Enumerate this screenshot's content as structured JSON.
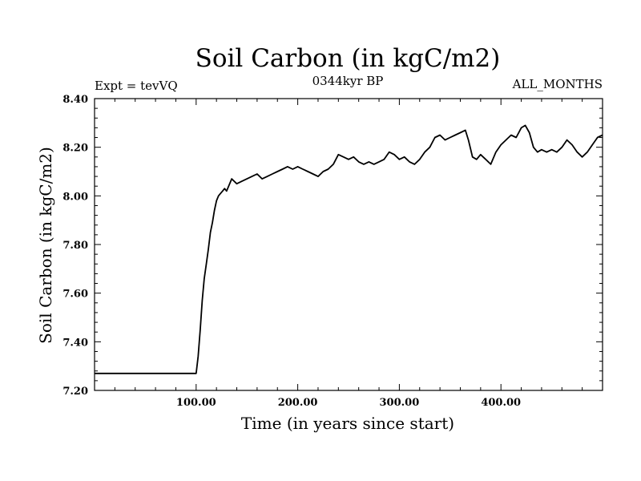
{
  "chart_data": {
    "type": "line",
    "title": "Soil Carbon (in kgC/m2)",
    "annotations": {
      "left": "Expt = tevVQ",
      "center": "0344kyr BP",
      "right": "ALL_MONTHS"
    },
    "xlabel": "Time (in years since start)",
    "ylabel": "Soil Carbon (in kgC/m2)",
    "xlim": [
      0,
      500
    ],
    "ylim": [
      7.2,
      8.4
    ],
    "x_ticks": [
      100,
      200,
      300,
      400
    ],
    "x_tick_labels": [
      "100.00",
      "200.00",
      "300.00",
      "400.00"
    ],
    "y_ticks": [
      7.2,
      7.4,
      7.6,
      7.8,
      8.0,
      8.2,
      8.4
    ],
    "y_tick_labels": [
      "7.20",
      "7.40",
      "7.60",
      "7.80",
      "8.00",
      "8.20",
      "8.40"
    ],
    "grid": false,
    "series": [
      {
        "x": [
          0,
          100,
          102,
          104,
          106,
          108,
          110,
          112,
          114,
          116,
          118,
          120,
          122,
          124,
          126,
          128,
          130,
          135,
          140,
          145,
          150,
          155,
          160,
          165,
          170,
          175,
          180,
          185,
          190,
          195,
          200,
          205,
          210,
          215,
          220,
          225,
          230,
          235,
          240,
          245,
          250,
          255,
          260,
          265,
          270,
          275,
          280,
          285,
          290,
          295,
          300,
          305,
          310,
          315,
          320,
          325,
          330,
          335,
          340,
          345,
          350,
          355,
          360,
          365,
          368,
          372,
          376,
          380,
          385,
          390,
          395,
          400,
          405,
          410,
          415,
          420,
          424,
          428,
          432,
          436,
          440,
          445,
          450,
          455,
          460,
          465,
          470,
          475,
          480,
          485,
          490,
          495,
          500
        ],
        "y": [
          7.27,
          7.27,
          7.34,
          7.45,
          7.57,
          7.66,
          7.72,
          7.78,
          7.85,
          7.89,
          7.94,
          7.98,
          8.0,
          8.01,
          8.02,
          8.03,
          8.02,
          8.07,
          8.05,
          8.06,
          8.07,
          8.08,
          8.09,
          8.07,
          8.08,
          8.09,
          8.1,
          8.11,
          8.12,
          8.11,
          8.12,
          8.11,
          8.1,
          8.09,
          8.08,
          8.1,
          8.11,
          8.13,
          8.17,
          8.16,
          8.15,
          8.16,
          8.14,
          8.13,
          8.14,
          8.13,
          8.14,
          8.15,
          8.18,
          8.17,
          8.15,
          8.16,
          8.14,
          8.13,
          8.15,
          8.18,
          8.2,
          8.24,
          8.25,
          8.23,
          8.24,
          8.25,
          8.26,
          8.27,
          8.23,
          8.16,
          8.15,
          8.17,
          8.15,
          8.13,
          8.18,
          8.21,
          8.23,
          8.25,
          8.24,
          8.28,
          8.29,
          8.26,
          8.2,
          8.18,
          8.19,
          8.18,
          8.19,
          8.18,
          8.2,
          8.23,
          8.21,
          8.18,
          8.16,
          8.18,
          8.21,
          8.24,
          8.25
        ]
      }
    ]
  }
}
